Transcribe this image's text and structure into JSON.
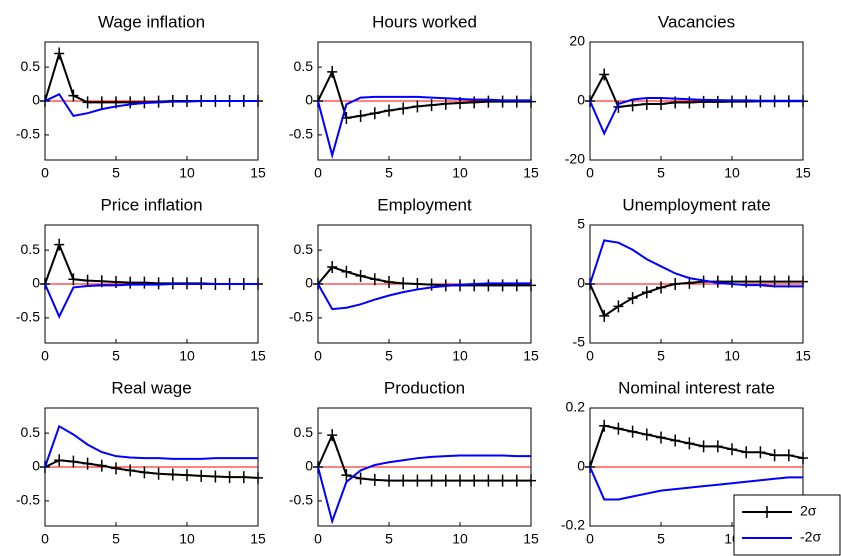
{
  "chart_data": [
    {
      "type": "line",
      "title": "Wage inflation",
      "x": [
        0,
        1,
        2,
        3,
        4,
        5,
        6,
        7,
        8,
        9,
        10,
        11,
        12,
        13,
        14,
        15
      ],
      "xlim": [
        0,
        15
      ],
      "xticks": [
        0,
        5,
        10,
        15
      ],
      "ylim": [
        -0.87,
        0.87
      ],
      "yticks": [
        0.5,
        0,
        -0.5
      ],
      "reference_line": {
        "value": 0,
        "color": "#ff0000"
      },
      "series": [
        {
          "color": "#000000",
          "marker": "+",
          "values": [
            0,
            0.7,
            0.08,
            -0.02,
            -0.02,
            -0.02,
            -0.02,
            -0.02,
            -0.01,
            0,
            0,
            0,
            0,
            0,
            0,
            0
          ]
        },
        {
          "color": "#0000ff",
          "values": [
            0,
            0.1,
            -0.22,
            -0.18,
            -0.12,
            -0.08,
            -0.05,
            -0.03,
            -0.02,
            -0.01,
            -0.01,
            0,
            0,
            0,
            0,
            0
          ]
        }
      ]
    },
    {
      "type": "line",
      "title": "Hours worked",
      "x": [
        0,
        1,
        2,
        3,
        4,
        5,
        6,
        7,
        8,
        9,
        10,
        11,
        12,
        13,
        14,
        15
      ],
      "xlim": [
        0,
        15
      ],
      "xticks": [
        0,
        5,
        10,
        15
      ],
      "ylim": [
        -0.87,
        0.87
      ],
      "yticks": [
        0.5,
        0,
        -0.5
      ],
      "reference_line": {
        "value": 0,
        "color": "#ff0000"
      },
      "series": [
        {
          "color": "#000000",
          "marker": "+",
          "values": [
            0,
            0.43,
            -0.25,
            -0.22,
            -0.18,
            -0.14,
            -0.11,
            -0.08,
            -0.06,
            -0.04,
            -0.03,
            -0.02,
            -0.01,
            -0.01,
            -0.01,
            -0.01
          ]
        },
        {
          "color": "#0000ff",
          "values": [
            0,
            -0.8,
            -0.05,
            0.05,
            0.06,
            0.06,
            0.06,
            0.06,
            0.05,
            0.04,
            0.03,
            0.02,
            0.02,
            0.01,
            0.01,
            0.01
          ]
        }
      ]
    },
    {
      "type": "line",
      "title": "Vacancies",
      "x": [
        0,
        1,
        2,
        3,
        4,
        5,
        6,
        7,
        8,
        9,
        10,
        11,
        12,
        13,
        14,
        15
      ],
      "xlim": [
        0,
        15
      ],
      "xticks": [
        0,
        5,
        10,
        15
      ],
      "ylim": [
        -20,
        20
      ],
      "yticks": [
        20,
        0,
        -20
      ],
      "reference_line": {
        "value": 0,
        "color": "#ff0000"
      },
      "series": [
        {
          "color": "#000000",
          "marker": "+",
          "values": [
            0,
            9,
            -2,
            -1.5,
            -1,
            -1,
            -0.5,
            -0.5,
            -0.3,
            -0.3,
            -0.2,
            -0.2,
            -0.1,
            -0.1,
            -0.1,
            -0.1
          ]
        },
        {
          "color": "#0000ff",
          "values": [
            0,
            -11,
            -1,
            0.5,
            1,
            1,
            0.8,
            0.6,
            0.4,
            0.3,
            0.2,
            0.2,
            0.1,
            0.1,
            0.1,
            0.1
          ]
        }
      ]
    },
    {
      "type": "line",
      "title": "Price inflation",
      "x": [
        0,
        1,
        2,
        3,
        4,
        5,
        6,
        7,
        8,
        9,
        10,
        11,
        12,
        13,
        14,
        15
      ],
      "xlim": [
        0,
        15
      ],
      "xticks": [
        0,
        5,
        10,
        15
      ],
      "ylim": [
        -0.87,
        0.87
      ],
      "yticks": [
        0.5,
        0,
        -0.5
      ],
      "reference_line": {
        "value": 0,
        "color": "#ff0000"
      },
      "series": [
        {
          "color": "#000000",
          "marker": "+",
          "values": [
            0,
            0.58,
            0.07,
            0.05,
            0.04,
            0.03,
            0.02,
            0.02,
            0.01,
            0.01,
            0.01,
            0.01,
            0,
            0,
            0,
            0
          ]
        },
        {
          "color": "#0000ff",
          "values": [
            0,
            -0.48,
            -0.05,
            -0.03,
            -0.02,
            -0.02,
            -0.01,
            -0.01,
            -0.01,
            0,
            0,
            0,
            0,
            0,
            0,
            0
          ]
        }
      ]
    },
    {
      "type": "line",
      "title": "Employment",
      "x": [
        0,
        1,
        2,
        3,
        4,
        5,
        6,
        7,
        8,
        9,
        10,
        11,
        12,
        13,
        14,
        15
      ],
      "xlim": [
        0,
        15
      ],
      "xticks": [
        0,
        5,
        10,
        15
      ],
      "ylim": [
        -0.87,
        0.87
      ],
      "yticks": [
        0.5,
        0,
        -0.5
      ],
      "reference_line": {
        "value": 0,
        "color": "#ff0000"
      },
      "series": [
        {
          "color": "#000000",
          "marker": "+",
          "values": [
            0,
            0.25,
            0.18,
            0.12,
            0.07,
            0.03,
            0.01,
            0,
            -0.01,
            -0.02,
            -0.02,
            -0.02,
            -0.02,
            -0.02,
            -0.02,
            -0.02
          ]
        },
        {
          "color": "#0000ff",
          "values": [
            0,
            -0.37,
            -0.35,
            -0.3,
            -0.23,
            -0.17,
            -0.12,
            -0.08,
            -0.05,
            -0.03,
            -0.01,
            0,
            0.01,
            0.01,
            0.01,
            0.01
          ]
        }
      ]
    },
    {
      "type": "line",
      "title": "Unemployment rate",
      "x": [
        0,
        1,
        2,
        3,
        4,
        5,
        6,
        7,
        8,
        9,
        10,
        11,
        12,
        13,
        14,
        15
      ],
      "xlim": [
        0,
        15
      ],
      "xticks": [
        0,
        5,
        10,
        15
      ],
      "ylim": [
        -5,
        5
      ],
      "yticks": [
        5,
        0,
        -5
      ],
      "reference_line": {
        "value": 0,
        "color": "#ff0000"
      },
      "series": [
        {
          "color": "#000000",
          "marker": "+",
          "values": [
            0,
            -2.7,
            -1.9,
            -1.2,
            -0.7,
            -0.3,
            0,
            0.1,
            0.2,
            0.2,
            0.2,
            0.2,
            0.2,
            0.2,
            0.2,
            0.2
          ]
        },
        {
          "color": "#0000ff",
          "values": [
            0,
            3.7,
            3.5,
            2.9,
            2.1,
            1.5,
            0.9,
            0.5,
            0.3,
            0.1,
            0,
            -0.1,
            -0.1,
            -0.2,
            -0.2,
            -0.2
          ]
        }
      ]
    },
    {
      "type": "line",
      "title": "Real wage",
      "x": [
        0,
        1,
        2,
        3,
        4,
        5,
        6,
        7,
        8,
        9,
        10,
        11,
        12,
        13,
        14,
        15
      ],
      "xlim": [
        0,
        15
      ],
      "xticks": [
        0,
        5,
        10,
        15
      ],
      "ylim": [
        -0.87,
        0.87
      ],
      "yticks": [
        0.5,
        0,
        -0.5
      ],
      "reference_line": {
        "value": 0,
        "color": "#ff0000"
      },
      "series": [
        {
          "color": "#000000",
          "marker": "+",
          "values": [
            0,
            0.1,
            0.08,
            0.05,
            0.02,
            -0.02,
            -0.05,
            -0.08,
            -0.1,
            -0.11,
            -0.12,
            -0.13,
            -0.14,
            -0.15,
            -0.15,
            -0.16
          ]
        },
        {
          "color": "#0000ff",
          "values": [
            0,
            0.6,
            0.48,
            0.33,
            0.22,
            0.16,
            0.14,
            0.13,
            0.13,
            0.12,
            0.12,
            0.12,
            0.13,
            0.13,
            0.13,
            0.13
          ]
        }
      ]
    },
    {
      "type": "line",
      "title": "Production",
      "x": [
        0,
        1,
        2,
        3,
        4,
        5,
        6,
        7,
        8,
        9,
        10,
        11,
        12,
        13,
        14,
        15
      ],
      "xlim": [
        0,
        15
      ],
      "xticks": [
        0,
        5,
        10,
        15
      ],
      "ylim": [
        -0.87,
        0.87
      ],
      "yticks": [
        0.5,
        0,
        -0.5
      ],
      "reference_line": {
        "value": 0,
        "color": "#ff0000"
      },
      "series": [
        {
          "color": "#000000",
          "marker": "+",
          "values": [
            0,
            0.47,
            -0.12,
            -0.17,
            -0.19,
            -0.2,
            -0.2,
            -0.2,
            -0.2,
            -0.2,
            -0.2,
            -0.2,
            -0.2,
            -0.2,
            -0.2,
            -0.2
          ]
        },
        {
          "color": "#0000ff",
          "values": [
            0,
            -0.8,
            -0.22,
            -0.05,
            0.03,
            0.07,
            0.1,
            0.13,
            0.15,
            0.16,
            0.17,
            0.17,
            0.17,
            0.17,
            0.16,
            0.16
          ]
        }
      ]
    },
    {
      "type": "line",
      "title": "Nominal interest rate",
      "x": [
        0,
        1,
        2,
        3,
        4,
        5,
        6,
        7,
        8,
        9,
        10,
        11,
        12,
        13,
        14,
        15
      ],
      "xlim": [
        0,
        15
      ],
      "xticks": [
        0,
        5,
        10,
        15
      ],
      "ylim": [
        -0.2,
        0.2
      ],
      "yticks": [
        0.2,
        0,
        -0.2
      ],
      "reference_line": {
        "value": 0,
        "color": "#ff0000"
      },
      "legend": "lower right",
      "series": [
        {
          "name": "2σ",
          "color": "#000000",
          "marker": "+",
          "values": [
            0,
            0.14,
            0.13,
            0.12,
            0.11,
            0.1,
            0.09,
            0.08,
            0.07,
            0.07,
            0.06,
            0.05,
            0.05,
            0.04,
            0.04,
            0.03
          ]
        },
        {
          "name": "-2σ",
          "color": "#0000ff",
          "values": [
            0,
            -0.11,
            -0.11,
            -0.1,
            -0.09,
            -0.08,
            -0.075,
            -0.07,
            -0.065,
            -0.06,
            -0.055,
            -0.05,
            -0.045,
            -0.04,
            -0.035,
            -0.035
          ]
        }
      ]
    }
  ]
}
